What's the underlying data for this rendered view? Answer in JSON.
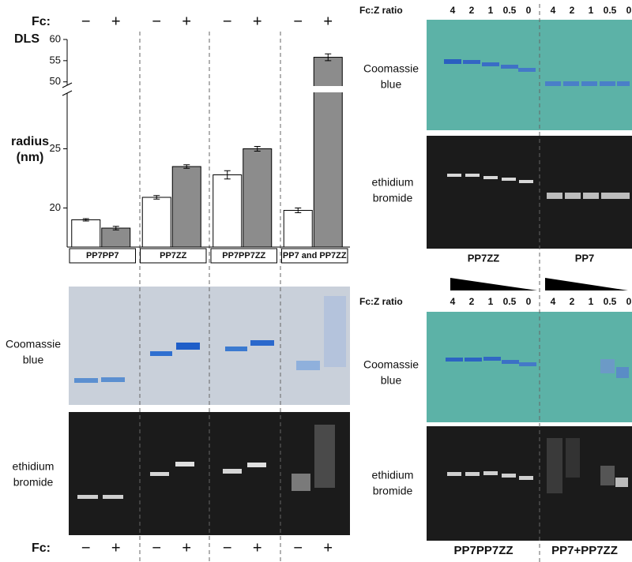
{
  "chart_data": {
    "type": "bar",
    "y_label": [
      "radius",
      "(nm)"
    ],
    "panel_label": "DLS",
    "legend_title": "Fc:",
    "categories": [
      "PP7PP7",
      "PP7ZZ",
      "PP7PP7ZZ",
      "PP7 and PP7ZZ"
    ],
    "series": [
      {
        "name": "−",
        "color": "#ffffff",
        "values": [
          19.0,
          20.9,
          22.8,
          19.8
        ],
        "errors": [
          0.1,
          0.15,
          0.35,
          0.2
        ]
      },
      {
        "name": "+",
        "color": "#8c8c8c",
        "values": [
          18.3,
          23.5,
          25.0,
          55.8
        ],
        "errors": [
          0.15,
          0.15,
          0.2,
          0.8
        ]
      }
    ],
    "ylim": [
      16.7,
      60
    ],
    "ybreak": [
      29.7,
      49.2
    ],
    "yticks": [
      20,
      25,
      50,
      55,
      60
    ]
  },
  "gel_labels": {
    "coomassie": [
      "Coomassie",
      "blue"
    ],
    "ethidium": [
      "ethidium",
      "bromide"
    ]
  },
  "ratio_label": "Fc:Z ratio",
  "ratios": [
    4,
    2,
    1,
    0.5,
    0
  ],
  "top_panels": [
    "PP7ZZ",
    "PP7"
  ],
  "bottom_panels": [
    "PP7PP7ZZ",
    "PP7+PP7ZZ"
  ]
}
